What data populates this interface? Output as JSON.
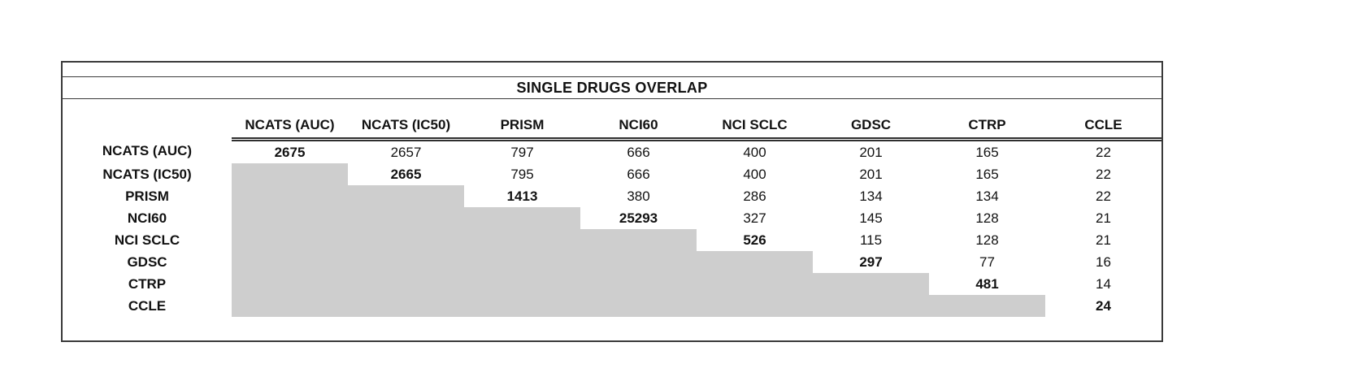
{
  "title": "SINGLE DRUGS OVERLAP",
  "colors": {
    "shade": "#cecece",
    "border": "#3a3a3a",
    "text": "#121212",
    "background": "#ffffff"
  },
  "chart_data": {
    "type": "table",
    "title": "SINGLE DRUGS OVERLAP",
    "columns": [
      "NCATS (AUC)",
      "NCATS (IC50)",
      "PRISM",
      "NCI60",
      "NCI SCLC",
      "GDSC",
      "CTRP",
      "CCLE"
    ],
    "row_labels": [
      "NCATS (AUC)",
      "NCATS (IC50)",
      "PRISM",
      "NCI60",
      "NCI SCLC",
      "GDSC",
      "CTRP",
      "CCLE"
    ],
    "matrix": [
      [
        2675,
        2657,
        797,
        666,
        400,
        201,
        165,
        22
      ],
      [
        null,
        2665,
        795,
        666,
        400,
        201,
        165,
        22
      ],
      [
        null,
        null,
        1413,
        380,
        286,
        134,
        134,
        22
      ],
      [
        null,
        null,
        null,
        25293,
        327,
        145,
        128,
        21
      ],
      [
        null,
        null,
        null,
        null,
        526,
        115,
        128,
        21
      ],
      [
        null,
        null,
        null,
        null,
        null,
        297,
        77,
        16
      ],
      [
        null,
        null,
        null,
        null,
        null,
        null,
        481,
        14
      ],
      [
        null,
        null,
        null,
        null,
        null,
        null,
        null,
        24
      ]
    ],
    "diagonal_bold": true,
    "lower_triangle_shaded": true,
    "legend_position": "none",
    "grid": false
  }
}
